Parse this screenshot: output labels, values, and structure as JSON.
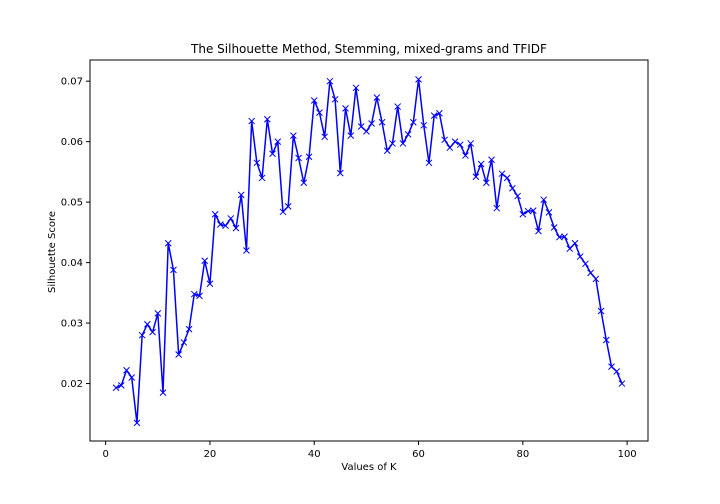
{
  "chart_data": {
    "type": "line",
    "title": "The Silhouette Method, Stemming, mixed-grams and TFIDF",
    "xlabel": "Values of K",
    "ylabel": "Silhouette Score",
    "xlim": [
      -3,
      104
    ],
    "ylim": [
      0.0105,
      0.0735
    ],
    "xticks": [
      0,
      20,
      40,
      60,
      80,
      100
    ],
    "xtick_labels": [
      "0",
      "20",
      "40",
      "60",
      "80",
      "100"
    ],
    "yticks": [
      0.02,
      0.03,
      0.04,
      0.05,
      0.06,
      0.07
    ],
    "ytick_labels": [
      "0.02",
      "0.03",
      "0.04",
      "0.05",
      "0.06",
      "0.07"
    ],
    "grid": false,
    "legend": false,
    "color": "#0000ff",
    "marker": "x",
    "x": [
      2,
      3,
      4,
      5,
      6,
      7,
      8,
      9,
      10,
      11,
      12,
      13,
      14,
      15,
      16,
      17,
      18,
      19,
      20,
      21,
      22,
      23,
      24,
      25,
      26,
      27,
      28,
      29,
      30,
      31,
      32,
      33,
      34,
      35,
      36,
      37,
      38,
      39,
      40,
      41,
      42,
      43,
      44,
      45,
      46,
      47,
      48,
      49,
      50,
      51,
      52,
      53,
      54,
      55,
      56,
      57,
      58,
      59,
      60,
      61,
      62,
      63,
      64,
      65,
      66,
      67,
      68,
      69,
      70,
      71,
      72,
      73,
      74,
      75,
      76,
      77,
      78,
      79,
      80,
      81,
      82,
      83,
      84,
      85,
      86,
      87,
      88,
      89,
      90,
      91,
      92,
      93,
      94,
      95,
      96,
      97,
      98,
      99
    ],
    "y": [
      0.0193,
      0.0197,
      0.0222,
      0.021,
      0.0135,
      0.028,
      0.0298,
      0.0285,
      0.0316,
      0.0185,
      0.0432,
      0.0388,
      0.0248,
      0.0268,
      0.029,
      0.0348,
      0.0345,
      0.0403,
      0.0365,
      0.048,
      0.0463,
      0.0461,
      0.0473,
      0.0457,
      0.0512,
      0.042,
      0.0634,
      0.0565,
      0.054,
      0.0637,
      0.058,
      0.06,
      0.0484,
      0.0493,
      0.061,
      0.0573,
      0.0532,
      0.0575,
      0.0668,
      0.0648,
      0.0608,
      0.07,
      0.067,
      0.0548,
      0.0655,
      0.061,
      0.0689,
      0.0625,
      0.0617,
      0.063,
      0.0673,
      0.0632,
      0.0585,
      0.0597,
      0.0658,
      0.0597,
      0.0612,
      0.0632,
      0.0703,
      0.0627,
      0.0565,
      0.0643,
      0.0647,
      0.0603,
      0.059,
      0.06,
      0.0595,
      0.0577,
      0.0597,
      0.0542,
      0.0563,
      0.0532,
      0.057,
      0.049,
      0.0547,
      0.054,
      0.0523,
      0.051,
      0.048,
      0.0485,
      0.0486,
      0.0452,
      0.0504,
      0.0483,
      0.0458,
      0.0442,
      0.0443,
      0.0423,
      0.0432,
      0.041,
      0.0398,
      0.0383,
      0.0373,
      0.032,
      0.0272,
      0.0228,
      0.022,
      0.02
    ]
  }
}
